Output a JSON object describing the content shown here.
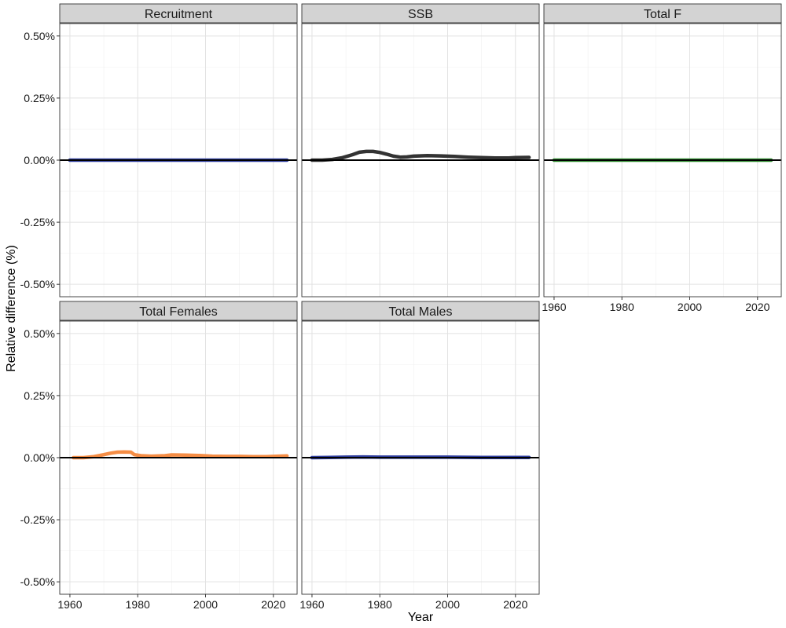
{
  "chart_data": {
    "type": "line",
    "xlabel": "Year",
    "ylabel": "Relative difference (%)",
    "xlim": [
      1957,
      2027
    ],
    "ylim": [
      -0.55,
      0.55
    ],
    "x_ticks": [
      1960,
      1980,
      2000,
      2020
    ],
    "x_tick_labels": [
      "1960",
      "1980",
      "2000",
      "2020"
    ],
    "y_ticks": [
      -0.5,
      -0.25,
      0,
      0.25,
      0.5
    ],
    "y_tick_labels": [
      "-0.50%",
      "-0.25%",
      "0.00%",
      "0.25%",
      "0.50%"
    ],
    "reference_line": 0,
    "grid": true,
    "legend": "none",
    "facets": [
      {
        "name": "Recruitment",
        "color": "#2f3e9e",
        "x": [
          1960,
          2024
        ],
        "y": [
          0,
          0
        ]
      },
      {
        "name": "SSB",
        "color": "#333333",
        "x": [
          1960,
          1963,
          1966,
          1969,
          1972,
          1974,
          1976,
          1978,
          1980,
          1982,
          1984,
          1986,
          1988,
          1990,
          1994,
          1998,
          2002,
          2006,
          2010,
          2014,
          2018,
          2020,
          2024
        ],
        "y": [
          0,
          0,
          0.003,
          0.01,
          0.022,
          0.032,
          0.035,
          0.035,
          0.031,
          0.024,
          0.016,
          0.012,
          0.013,
          0.016,
          0.018,
          0.017,
          0.015,
          0.012,
          0.01,
          0.009,
          0.009,
          0.01,
          0.011
        ]
      },
      {
        "name": "Total F",
        "color": "#2e8b2e",
        "x": [
          1960,
          2024
        ],
        "y": [
          0,
          0
        ]
      },
      {
        "name": "Total Females",
        "color": "#f58d45",
        "x": [
          1961,
          1964,
          1967,
          1970,
          1972,
          1974,
          1976,
          1978,
          1979,
          1981,
          1984,
          1988,
          1990,
          1994,
          1998,
          2002,
          2006,
          2010,
          2014,
          2018,
          2020,
          2024
        ],
        "y": [
          0,
          0,
          0.004,
          0.012,
          0.018,
          0.022,
          0.023,
          0.022,
          0.012,
          0.008,
          0.006,
          0.008,
          0.011,
          0.01,
          0.009,
          0.006,
          0.005,
          0.005,
          0.004,
          0.004,
          0.005,
          0.007
        ]
      },
      {
        "name": "Total Males",
        "color": "#2f3e9e",
        "x": [
          1960,
          1965,
          1970,
          1975,
          1980,
          1990,
          2000,
          2010,
          2024
        ],
        "y": [
          0,
          0.001,
          0.002,
          0.003,
          0.002,
          0.002,
          0.002,
          0.001,
          0.001
        ]
      }
    ]
  }
}
